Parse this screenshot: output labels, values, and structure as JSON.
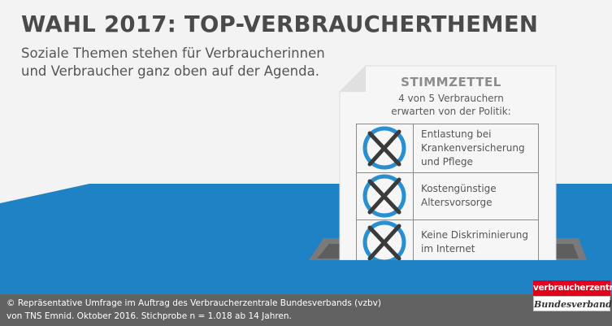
{
  "header": {
    "title": "WAHL 2017: TOP-VERBRAUCHERTHEMEN",
    "subtitle_line1": "Soziale Themen stehen für Verbraucherinnen",
    "subtitle_line2": "und Verbraucher ganz oben auf der Agenda."
  },
  "ballot": {
    "title": "STIMMZETTEL",
    "intro_line1": "4 von 5 Verbrauchern",
    "intro_line2": "erwarten von der Politik:",
    "items": [
      {
        "line1": "Entlastung bei",
        "line2": "Krankenversicherung",
        "line3": "und Pflege",
        "marked": true
      },
      {
        "line1": "Kostengünstige",
        "line2": "Altersvorsorge",
        "marked": true
      },
      {
        "line1": "Keine Diskriminierung",
        "line2": "im Internet",
        "marked": true
      }
    ]
  },
  "footer": {
    "source_line1": "© Repräsentative Umfrage im Auftrag des Verbraucherzentrale Bundesverbands (vzbv)",
    "source_line2": "von TNS Emnid. Oktober 2016. Stichprobe  n = 1.018 ab 14 Jahren."
  },
  "logo": {
    "top": "verbraucherzentrale",
    "bottom": "Bundesverband"
  },
  "colors": {
    "blue_floor": "#1f82c4",
    "blue_floor_dark": "#196ca6",
    "circle": "#2a8fd0",
    "cross": "#3a3a3a",
    "footer": "#626262",
    "brand_red": "#e2001a"
  }
}
